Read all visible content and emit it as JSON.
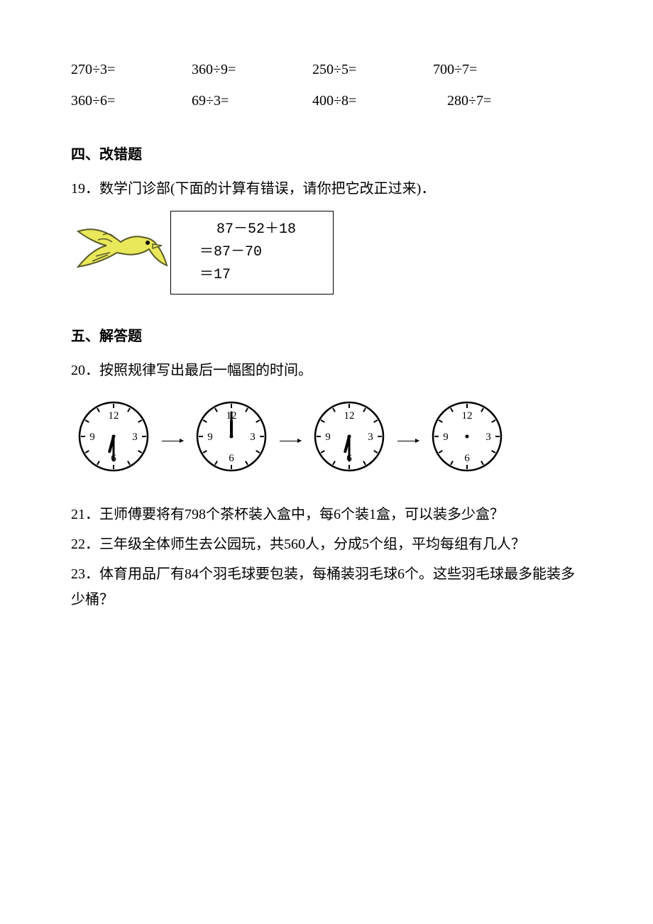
{
  "equations": {
    "row1": [
      "270÷3=",
      "360÷9=",
      "250÷5=",
      "700÷7="
    ],
    "row2": [
      "360÷6=",
      "69÷3=",
      "400÷8=",
      "280÷7="
    ]
  },
  "section4": {
    "heading": "四、改错题",
    "q19": "19．数学门诊部(下面的计算有错误，请你把它改正过来)．",
    "calc_lines": [
      "  87－52＋18",
      "＝87－70",
      "＝17"
    ]
  },
  "section5": {
    "heading": "五、解答题",
    "q20": "20．按照规律写出最后一幅图的时间。",
    "q21": "21．王师傅要将有798个茶杯装入盒中，每6个装1盒，可以装多少盒？",
    "q22": "22．三年级全体师生去公园玩，共560人，分成5个组，平均每组有几人？",
    "q23": "23．体育用品厂有84个羽毛球要包装，每桶装羽毛球6个。这些羽毛球最多能装多少桶？"
  },
  "clocks": [
    {
      "hour_angle": 195,
      "minute_angle": 180,
      "show_hands": true
    },
    {
      "hour_angle": 0,
      "minute_angle": 0,
      "show_hands": true
    },
    {
      "hour_angle": 195,
      "minute_angle": 180,
      "show_hands": true
    },
    {
      "hour_angle": 0,
      "minute_angle": 0,
      "show_hands": false
    }
  ],
  "colors": {
    "text": "#000000",
    "background": "#ffffff",
    "bird_body": "#e8e85a",
    "bird_outline": "#5a5a2a"
  }
}
